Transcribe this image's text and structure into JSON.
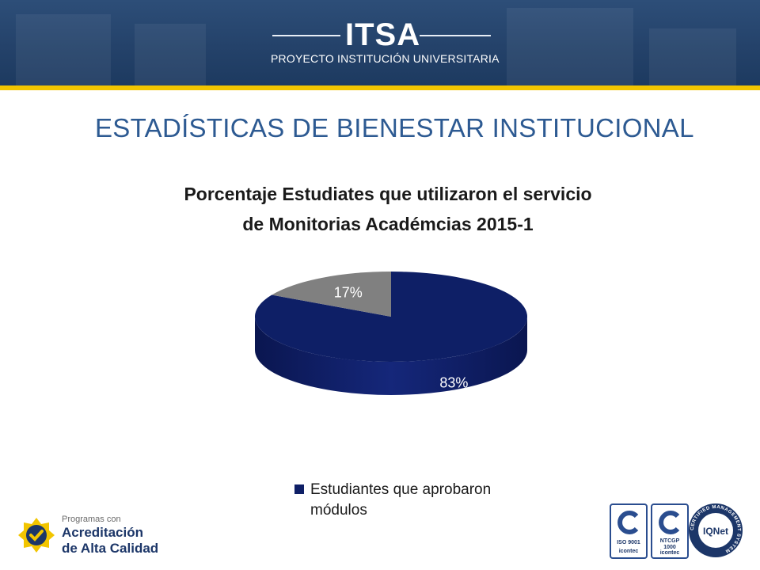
{
  "header": {
    "logo": "ITSA",
    "subtitle": "PROYECTO INSTITUCIÓN UNIVERSITARIA",
    "stripe_color": "#f2c500",
    "banner_color": "#24426a"
  },
  "slide": {
    "title": "ESTADÍSTICAS DE BIENESTAR INSTITUCIONAL",
    "title_color": "#2d5a92"
  },
  "chart_data": {
    "type": "pie",
    "title": "Porcentaje Estudiates que utilizaron el servicio de Monitorias Académcias 2015-1",
    "title_lines": [
      "Porcentaje Estudiates que utilizaron el servicio",
      "de Monitorias Académcias 2015-1"
    ],
    "style": "3d",
    "slices": [
      {
        "name": "Estudiantes que aprobaron módulos",
        "value": 83,
        "label": "83%",
        "color": "#0e1f66"
      },
      {
        "value": 17,
        "label": "17%",
        "color": "#808080"
      }
    ],
    "legend": {
      "position": "bottom",
      "entries": [
        {
          "lines": [
            "Estudiantes que aprobaron",
            "módulos"
          ],
          "color": "#0e1f66"
        }
      ]
    }
  },
  "footer": {
    "accreditation": {
      "pre": "Programas con",
      "line1": "Acreditación",
      "line2": "de Alta Calidad"
    },
    "certifications": [
      {
        "label": "ISO 9001",
        "issuer": "icontec"
      },
      {
        "label": "NTCGP 1000",
        "issuer": "icontec"
      },
      {
        "label": "IQNet",
        "ring": "CERTIFIED MANAGEMENT SYSTEM"
      }
    ]
  }
}
